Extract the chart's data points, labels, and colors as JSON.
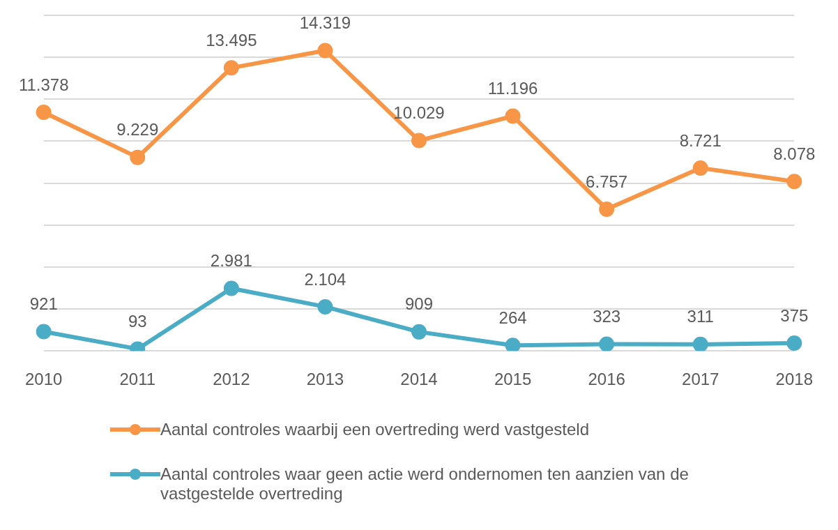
{
  "chart_data": {
    "type": "line",
    "categories": [
      "2010",
      "2011",
      "2012",
      "2013",
      "2014",
      "2015",
      "2016",
      "2017",
      "2018"
    ],
    "series": [
      {
        "name": "Aantal controles waarbij een overtreding werd vastgesteld",
        "color": "#f79646",
        "values": [
          11378,
          9229,
          13495,
          14319,
          10029,
          11196,
          6757,
          8721,
          8078
        ],
        "value_labels": [
          "11.378",
          "9.229",
          "13.495",
          "14.319",
          "10.029",
          "11.196",
          "6.757",
          "8.721",
          "8.078"
        ]
      },
      {
        "name": "Aantal controles waar geen actie werd ondernomen ten aanzien van de vastgestelde overtreding",
        "color": "#4bacc6",
        "values": [
          921,
          93,
          2981,
          2104,
          909,
          264,
          323,
          311,
          375
        ],
        "value_labels": [
          "921",
          "93",
          "2.981",
          "2.104",
          "909",
          "264",
          "323",
          "311",
          "375"
        ]
      }
    ],
    "ylim": [
      0,
      16000
    ],
    "yticks": [
      {
        "value": 0,
        "label": null
      },
      {
        "value": 2000,
        "label": null
      },
      {
        "value": 4000,
        "label": null
      },
      {
        "value": 6000,
        "label": null
      },
      {
        "value": 8000,
        "label": null
      },
      {
        "value": 10000,
        "label": null
      },
      {
        "value": 12000,
        "label": null
      },
      {
        "value": 14000,
        "label": null
      },
      {
        "value": 16000,
        "label": null
      }
    ],
    "grid": "y",
    "tick_labels": "x",
    "legend": "bottom",
    "marker": "circle",
    "line_style": "solid"
  }
}
